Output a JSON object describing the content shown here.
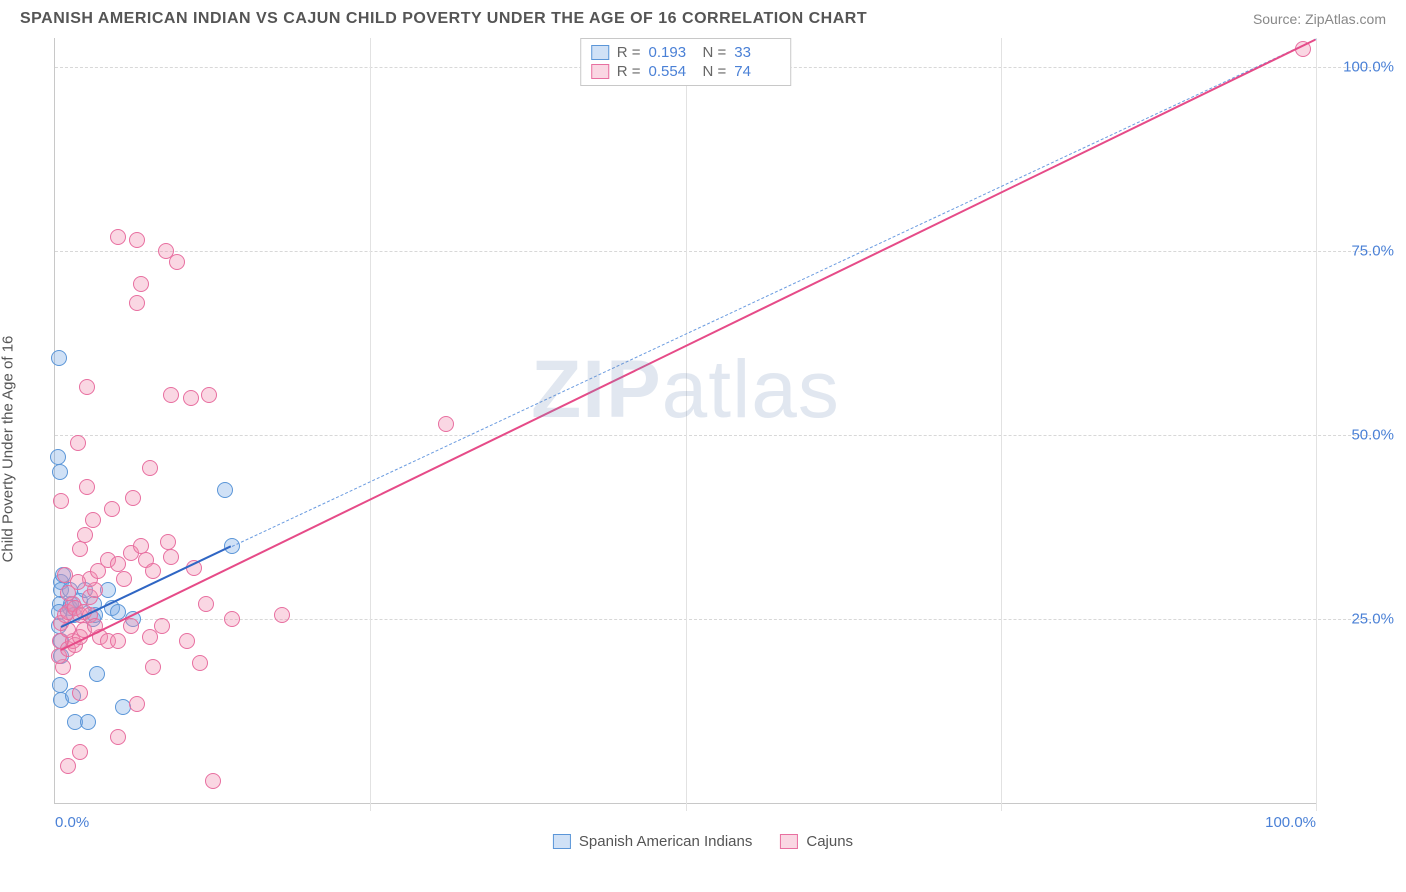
{
  "header": {
    "title": "SPANISH AMERICAN INDIAN VS CAJUN CHILD POVERTY UNDER THE AGE OF 16 CORRELATION CHART",
    "source": "Source: ZipAtlas.com"
  },
  "watermark": {
    "part1": "ZIP",
    "part2": "atlas"
  },
  "chart": {
    "type": "scatter",
    "ylabel": "Child Poverty Under the Age of 16",
    "xlim": [
      0,
      100
    ],
    "ylim": [
      0,
      104
    ],
    "xticks": [
      0,
      25,
      50,
      75,
      100
    ],
    "yticks": [
      25,
      50,
      75,
      100
    ],
    "xtick_labels": [
      "0.0%",
      "",
      "",
      "",
      "100.0%"
    ],
    "ytick_labels": [
      "25.0%",
      "50.0%",
      "75.0%",
      "100.0%"
    ],
    "grid_color": "#d8d8d8",
    "axis_color": "#c8c8c8",
    "background": "#ffffff",
    "tick_label_color": "#4a80d6",
    "marker_radius": 8,
    "marker_stroke_width": 1.5,
    "series": [
      {
        "name": "Spanish American Indians",
        "fill": "rgba(120,170,230,0.35)",
        "stroke": "#5b96d8",
        "R": "0.193",
        "N": "33",
        "trend": {
          "x1": 0.5,
          "y1": 24,
          "x2": 14,
          "y2": 35,
          "color": "#2f66c4",
          "width": 2.4,
          "dash": false
        },
        "trend_ext": {
          "x1": 14,
          "y1": 35,
          "x2": 100,
          "y2": 104,
          "color": "#6a9be0",
          "width": 1.3,
          "dash": true
        },
        "points": [
          [
            0.3,
            60.5
          ],
          [
            0.2,
            47
          ],
          [
            0.4,
            45
          ],
          [
            0.5,
            30
          ],
          [
            0.5,
            29
          ],
          [
            0.6,
            31
          ],
          [
            0.4,
            27
          ],
          [
            0.3,
            26
          ],
          [
            1.2,
            26.5
          ],
          [
            1.2,
            29
          ],
          [
            1.3,
            27
          ],
          [
            2.0,
            27.5
          ],
          [
            2.4,
            29
          ],
          [
            1.5,
            25.5
          ],
          [
            0.3,
            24
          ],
          [
            0.5,
            22
          ],
          [
            0.5,
            20
          ],
          [
            0.4,
            16
          ],
          [
            0.5,
            14
          ],
          [
            1.4,
            14.5
          ],
          [
            1.6,
            11
          ],
          [
            2.6,
            11
          ],
          [
            3.3,
            17.5
          ],
          [
            5.4,
            13
          ],
          [
            3.0,
            25
          ],
          [
            3.2,
            25.5
          ],
          [
            3.1,
            27
          ],
          [
            4.2,
            29
          ],
          [
            4.5,
            26.5
          ],
          [
            5.0,
            26
          ],
          [
            6.2,
            25
          ],
          [
            13.5,
            42.5
          ],
          [
            14,
            35
          ]
        ]
      },
      {
        "name": "Cajuns",
        "fill": "rgba(240,140,175,0.35)",
        "stroke": "#e86fa0",
        "R": "0.554",
        "N": "74",
        "trend": {
          "x1": 0.5,
          "y1": 21,
          "x2": 100,
          "y2": 104,
          "color": "#e64b88",
          "width": 2.6,
          "dash": false
        },
        "points": [
          [
            1.0,
            5
          ],
          [
            2.0,
            7
          ],
          [
            5.0,
            9
          ],
          [
            6.5,
            13.5
          ],
          [
            7.8,
            18.5
          ],
          [
            11.5,
            19
          ],
          [
            12.5,
            3
          ],
          [
            2.0,
            15
          ],
          [
            0.6,
            18.5
          ],
          [
            0.3,
            20
          ],
          [
            0.4,
            22
          ],
          [
            1.0,
            21
          ],
          [
            1.4,
            22
          ],
          [
            1.6,
            21.5
          ],
          [
            2.0,
            22.5
          ],
          [
            2.3,
            23.5
          ],
          [
            1.0,
            23.5
          ],
          [
            0.5,
            24.5
          ],
          [
            0.8,
            25.5
          ],
          [
            1.0,
            26
          ],
          [
            1.4,
            27
          ],
          [
            1.6,
            26.5
          ],
          [
            2.0,
            25.5
          ],
          [
            2.3,
            26
          ],
          [
            2.8,
            25.5
          ],
          [
            3.2,
            24
          ],
          [
            3.6,
            22.5
          ],
          [
            4.2,
            22
          ],
          [
            5.0,
            22
          ],
          [
            6.0,
            24
          ],
          [
            7.5,
            22.5
          ],
          [
            8.5,
            24
          ],
          [
            10.5,
            22
          ],
          [
            12,
            27
          ],
          [
            14,
            25
          ],
          [
            18,
            25.5
          ],
          [
            2.8,
            28
          ],
          [
            3.2,
            29
          ],
          [
            2.8,
            30.5
          ],
          [
            3.4,
            31.5
          ],
          [
            4.2,
            33
          ],
          [
            5.5,
            30.5
          ],
          [
            5.0,
            32.5
          ],
          [
            6.0,
            34
          ],
          [
            6.8,
            35
          ],
          [
            7.2,
            33
          ],
          [
            7.8,
            31.5
          ],
          [
            9.2,
            33.5
          ],
          [
            9.0,
            35.5
          ],
          [
            11,
            32
          ],
          [
            2.0,
            34.5
          ],
          [
            2.4,
            36.5
          ],
          [
            3.0,
            38.5
          ],
          [
            4.5,
            40
          ],
          [
            6.2,
            41.5
          ],
          [
            2.5,
            43
          ],
          [
            0.5,
            41
          ],
          [
            7.5,
            45.5
          ],
          [
            1.8,
            49
          ],
          [
            10.8,
            55
          ],
          [
            9.2,
            55.5
          ],
          [
            12.2,
            55.5
          ],
          [
            2.5,
            56.5
          ],
          [
            31,
            51.5
          ],
          [
            6.5,
            68
          ],
          [
            6.8,
            70.5
          ],
          [
            5.0,
            77
          ],
          [
            6.5,
            76.5
          ],
          [
            8.8,
            75
          ],
          [
            9.7,
            73.5
          ],
          [
            99.0,
            102.5
          ],
          [
            0.8,
            31
          ],
          [
            1.8,
            30
          ],
          [
            1.0,
            28.5
          ]
        ]
      }
    ],
    "legend_bottom": [
      {
        "label": "Spanish American Indians",
        "fill": "rgba(120,170,230,0.35)",
        "stroke": "#5b96d8"
      },
      {
        "label": "Cajuns",
        "fill": "rgba(240,140,175,0.35)",
        "stroke": "#e86fa0"
      }
    ]
  }
}
